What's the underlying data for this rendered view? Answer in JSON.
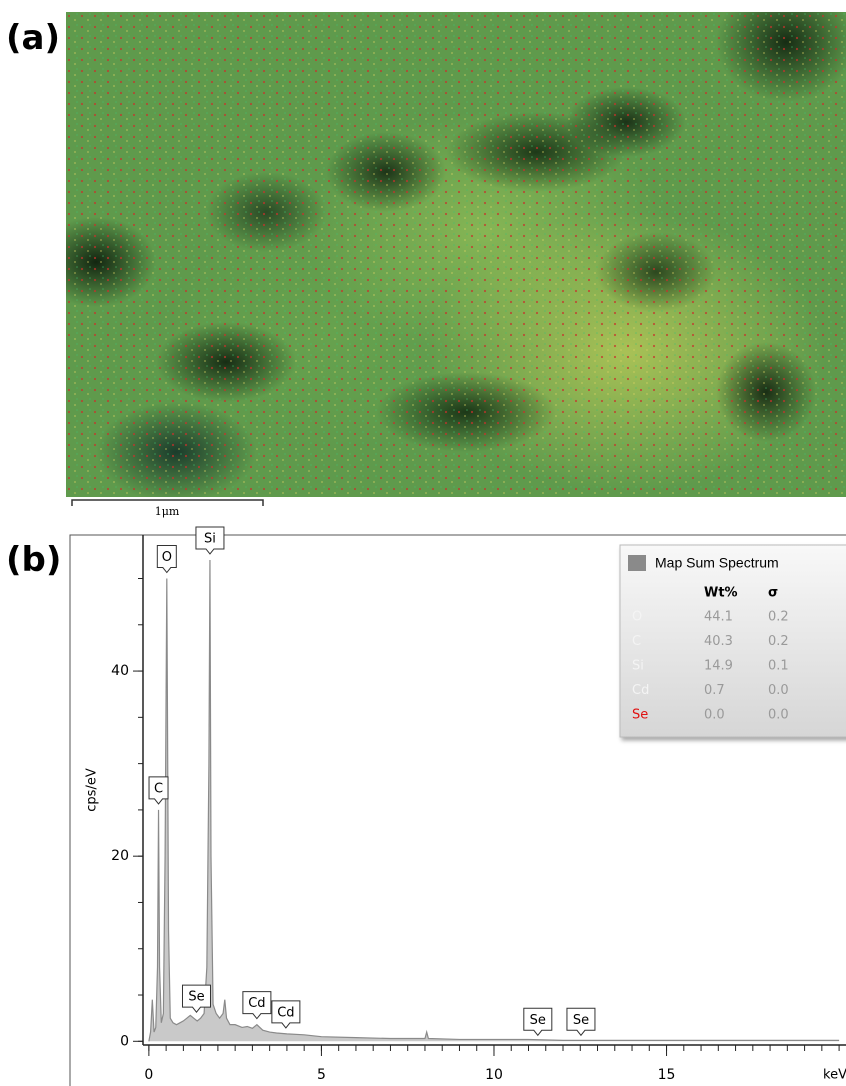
{
  "panels": {
    "a": "(a)",
    "b": "(b)"
  },
  "scale_bar": "1μm",
  "chart_data": {
    "type": "line",
    "ylabel": "cps/eV",
    "xlabel": "keV",
    "x": [
      0,
      0.05,
      0.1,
      0.15,
      0.2,
      0.25,
      0.28,
      0.31,
      0.36,
      0.42,
      0.47,
      0.52,
      0.57,
      0.62,
      0.7,
      0.8,
      0.9,
      1.0,
      1.1,
      1.2,
      1.3,
      1.4,
      1.5,
      1.6,
      1.68,
      1.74,
      1.77,
      1.8,
      1.86,
      1.95,
      2.05,
      2.15,
      2.2,
      2.25,
      2.35,
      2.5,
      2.7,
      2.85,
      3.0,
      3.13,
      3.3,
      3.5,
      3.7,
      4.0,
      4.5,
      5.0,
      6.0,
      7.0,
      8.0,
      8.05,
      8.1,
      9,
      10,
      11,
      12,
      13,
      14,
      15,
      16,
      17,
      18,
      19,
      20
    ],
    "series": [
      {
        "name": "Map Sum Spectrum",
        "color": "#8a8a8a",
        "values": [
          0,
          1,
          4.5,
          1,
          1.5,
          8,
          25,
          8,
          2,
          3,
          20,
          50,
          12,
          2.5,
          2,
          1.8,
          2,
          2.2,
          2.5,
          2.8,
          2.5,
          2.2,
          2.5,
          3,
          8,
          30,
          52,
          20,
          4,
          3,
          2.5,
          3,
          4.5,
          2.5,
          1.8,
          1.8,
          1.5,
          1.6,
          1.4,
          1.8,
          1.2,
          1,
          0.9,
          0.8,
          0.7,
          0.5,
          0.4,
          0.3,
          0.3,
          1,
          0.3,
          0.2,
          0.2,
          0.2,
          0.1,
          0.1,
          0.1,
          0.1,
          0.1,
          0.1,
          0.1,
          0.1,
          0.1
        ]
      }
    ],
    "xlim": [
      -0.17,
      20.2
    ],
    "xticks": [
      0,
      5,
      10,
      15
    ],
    "xminor": 0.5,
    "ylim": [
      -0.4,
      54.7
    ],
    "yticks": [
      0,
      20,
      40
    ],
    "yminor": 5,
    "peak_labels": [
      {
        "label": "C",
        "x": 0.28
      },
      {
        "label": "O",
        "x": 0.52
      },
      {
        "label": "Si",
        "x": 1.77
      },
      {
        "label": "Se",
        "x": 1.38
      },
      {
        "label": "Cd",
        "x": 3.13
      },
      {
        "label": "Cd",
        "x": 3.97
      },
      {
        "label": "Se",
        "x": 11.27
      },
      {
        "label": "Se",
        "x": 12.52
      }
    ],
    "composition": {
      "columns": [
        "Wt%",
        "σ"
      ],
      "rows": [
        {
          "element": "O",
          "color": "#f4f4f4",
          "values": [
            "44.1",
            "0.2"
          ]
        },
        {
          "element": "C",
          "color": "#f4f4f4",
          "values": [
            "40.3",
            "0.2"
          ]
        },
        {
          "element": "Si",
          "color": "#f4f4f4",
          "values": [
            "14.9",
            "0.1"
          ]
        },
        {
          "element": "Cd",
          "color": "#f4f4f4",
          "values": [
            "0.7",
            "0.0"
          ]
        },
        {
          "element": "Se",
          "color": "#e01010",
          "values": [
            "0.0",
            "0.0"
          ]
        }
      ]
    }
  }
}
